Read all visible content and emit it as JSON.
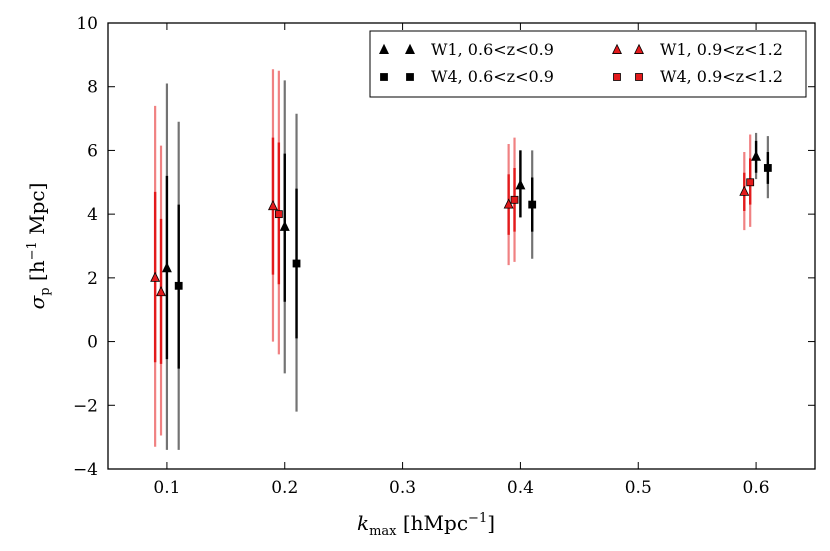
{
  "chart_data": {
    "type": "scatter",
    "title": "",
    "xlabel": {
      "main": "k",
      "sub": "max",
      "unit": "[hMpc",
      "unit_sup": "−1",
      "unit_end": "]"
    },
    "ylabel": {
      "main": "σ",
      "sub": "p",
      "unit": "[h",
      "unit_sup": "−1",
      "unit_end": " Mpc]"
    },
    "xlim": [
      0.05,
      0.65
    ],
    "ylim": [
      -4,
      10
    ],
    "xticks": [
      0.1,
      0.2,
      0.3,
      0.4,
      0.5,
      0.6
    ],
    "xtick_labels": [
      "0.1",
      "0.2",
      "0.3",
      "0.4",
      "0.5",
      "0.6"
    ],
    "yticks": [
      -4,
      -2,
      0,
      2,
      4,
      6,
      8,
      10
    ],
    "ytick_labels": [
      "−4",
      "−2",
      "0",
      "2",
      "4",
      "6",
      "8",
      "10"
    ],
    "legend": {
      "position": "top-right"
    },
    "series": [
      {
        "name": "W1, 0.6<z<0.9",
        "marker": "triangle",
        "face": "#000000",
        "errcolor": "#000000",
        "points": [
          {
            "x": 0.1,
            "y": 2.3,
            "inner": [
              -0.55,
              5.2
            ],
            "outer": [
              -3.4,
              8.1
            ]
          },
          {
            "x": 0.2,
            "y": 3.6,
            "inner": [
              1.25,
              5.9
            ],
            "outer": [
              -1.0,
              8.2
            ]
          },
          {
            "x": 0.4,
            "y": 4.9,
            "inner": [
              3.9,
              6.0
            ],
            "outer": [
              3.9,
              6.0
            ]
          },
          {
            "x": 0.6,
            "y": 5.8,
            "inner": [
              5.3,
              6.3
            ],
            "outer": [
              5.1,
              6.55
            ]
          }
        ]
      },
      {
        "name": "W4, 0.6<z<0.9",
        "marker": "square",
        "face": "#000000",
        "errcolor": "#000000",
        "points": [
          {
            "x": 0.11,
            "y": 1.75,
            "inner": [
              -0.85,
              4.3
            ],
            "outer": [
              -3.4,
              6.9
            ]
          },
          {
            "x": 0.21,
            "y": 2.45,
            "inner": [
              0.1,
              4.8
            ],
            "outer": [
              -2.2,
              7.15
            ]
          },
          {
            "x": 0.41,
            "y": 4.3,
            "inner": [
              3.45,
              5.15
            ],
            "outer": [
              2.6,
              6.0
            ]
          },
          {
            "x": 0.61,
            "y": 5.45,
            "inner": [
              4.95,
              5.95
            ],
            "outer": [
              4.5,
              6.45
            ]
          }
        ]
      },
      {
        "name": "W1, 0.9<z<1.2",
        "marker": "triangle",
        "face": "#e31a1c",
        "errcolor": "#e31a1c",
        "points": [
          {
            "x": 0.09,
            "y": 2.0,
            "inner": [
              -0.65,
              4.7
            ],
            "outer": [
              -3.3,
              7.4
            ]
          },
          {
            "x": 0.095,
            "y": 1.55,
            "inner": [
              -0.7,
              3.85
            ],
            "outer": [
              -2.95,
              6.15
            ]
          },
          {
            "x": 0.19,
            "y": 4.25,
            "inner": [
              2.1,
              6.4
            ],
            "outer": [
              0.0,
              8.55
            ]
          },
          {
            "x": 0.39,
            "y": 4.3,
            "inner": [
              3.35,
              5.25
            ],
            "outer": [
              2.4,
              6.2
            ]
          },
          {
            "x": 0.59,
            "y": 4.7,
            "inner": [
              4.1,
              5.3
            ],
            "outer": [
              3.5,
              5.95
            ]
          }
        ]
      },
      {
        "name": "W4, 0.9<z<1.2",
        "marker": "square",
        "face": "#e31a1c",
        "errcolor": "#e31a1c",
        "points": [
          {
            "x": 0.195,
            "y": 4.0,
            "inner": [
              1.8,
              6.25
            ],
            "outer": [
              -0.4,
              8.5
            ]
          },
          {
            "x": 0.395,
            "y": 4.45,
            "inner": [
              3.45,
              5.45
            ],
            "outer": [
              2.5,
              6.4
            ]
          },
          {
            "x": 0.595,
            "y": 5.0,
            "inner": [
              4.3,
              5.75
            ],
            "outer": [
              3.6,
              6.5
            ]
          }
        ]
      }
    ]
  }
}
